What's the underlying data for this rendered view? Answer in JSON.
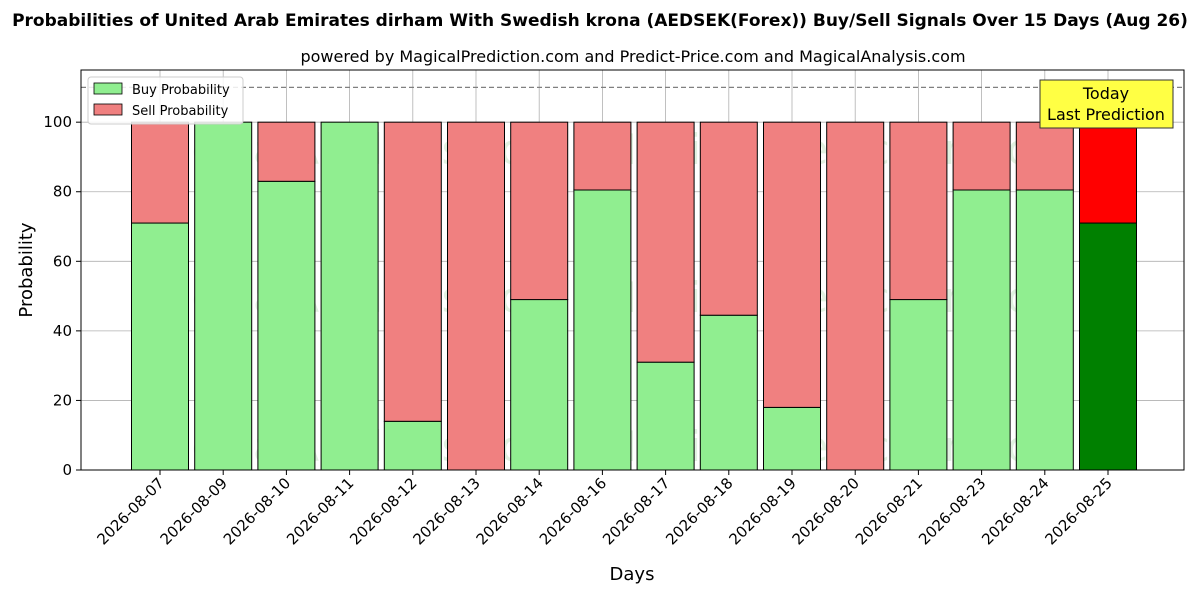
{
  "chart_data": {
    "type": "bar",
    "stacked": true,
    "title": "Probabilities of United Arab Emirates dirham With Swedish krona (AEDSEK(Forex)) Buy/Sell Signals Over 15 Days (Aug 26)",
    "subtitle": "powered by MagicalPrediction.com and Predict-Price.com and MagicalAnalysis.com",
    "xlabel": "Days",
    "ylabel": "Probability",
    "ylim": [
      0,
      115
    ],
    "yticks": [
      0,
      20,
      40,
      60,
      80,
      100
    ],
    "reference_line": 110,
    "grid": true,
    "legend_position": "top-left",
    "categories": [
      "2026-08-07",
      "2026-08-09",
      "2026-08-10",
      "2026-08-11",
      "2026-08-12",
      "2026-08-13",
      "2026-08-14",
      "2026-08-16",
      "2026-08-17",
      "2026-08-18",
      "2026-08-19",
      "2026-08-20",
      "2026-08-21",
      "2026-08-23",
      "2026-08-24",
      "2026-08-25"
    ],
    "series": [
      {
        "name": "Buy Probability",
        "color": "#90ee90",
        "highlight_color": "#008000",
        "values": [
          71,
          100,
          83,
          100,
          14,
          0,
          49,
          80.5,
          31,
          44.5,
          18,
          0,
          49,
          80.5,
          80.5,
          71
        ]
      },
      {
        "name": "Sell Probability",
        "color": "#f08080",
        "highlight_color": "#ff0000",
        "values": [
          29,
          0,
          17,
          0,
          86,
          100,
          51,
          19.5,
          69,
          55.5,
          82,
          100,
          51,
          19.5,
          19.5,
          29
        ]
      }
    ],
    "highlight_index": 15,
    "annotation": {
      "lines": [
        "Today",
        "Last Prediction"
      ],
      "color": "#ffff44"
    },
    "watermarks": [
      "MagicalAnalysis.com",
      "MagicalPrediction.com"
    ]
  }
}
